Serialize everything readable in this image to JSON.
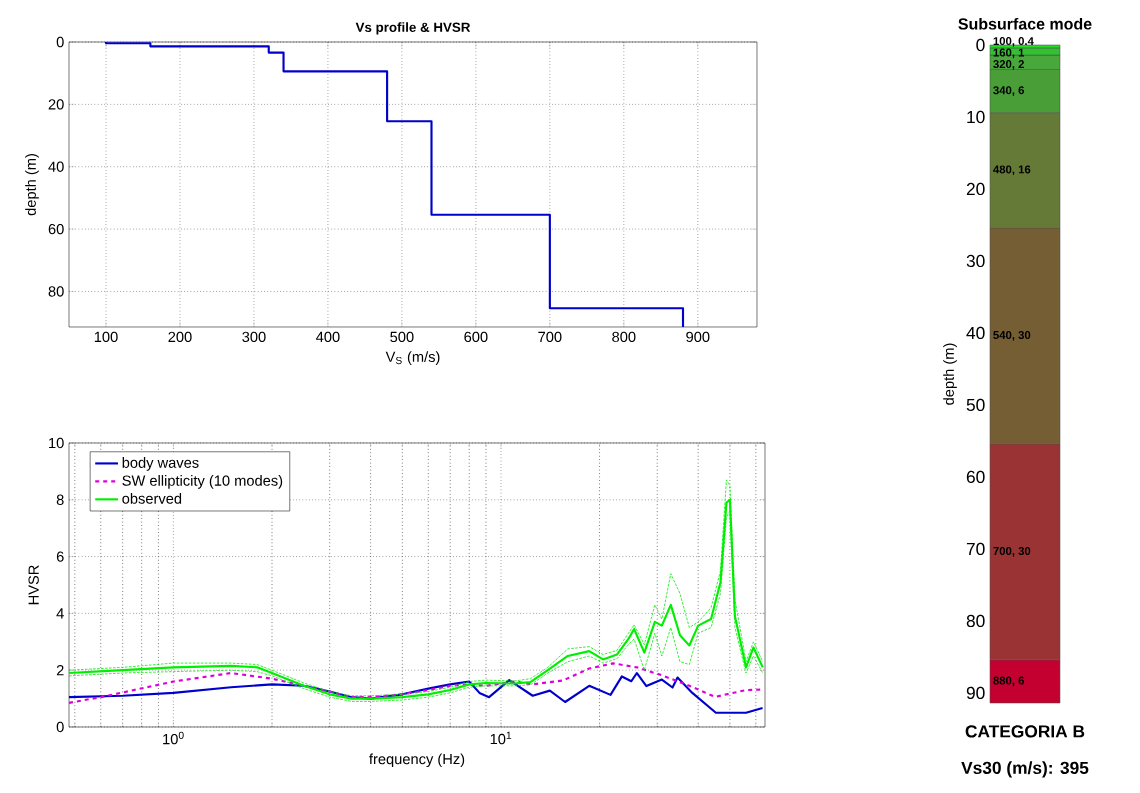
{
  "chart_data": [
    {
      "type": "line",
      "title": "Vs profile & HVSR",
      "xlabel": "V$_{S}$ (m/s)",
      "ylabel": "depth (m)",
      "x": [
        100,
        100,
        160,
        160,
        320,
        320,
        340,
        340,
        480,
        480,
        540,
        540,
        700,
        700,
        880,
        880
      ],
      "values": [
        0,
        0.4,
        0.4,
        1.4,
        1.4,
        3.4,
        3.4,
        9.4,
        9.4,
        25.4,
        25.4,
        55.4,
        55.4,
        85.4,
        85.4,
        91.4
      ],
      "color": "#0000cc",
      "xlim": [
        50,
        980
      ],
      "ylim": [
        91.4,
        0
      ],
      "xticks": [
        100,
        200,
        300,
        400,
        500,
        600,
        700,
        800,
        900
      ],
      "yticks": [
        0,
        20,
        40,
        60,
        80
      ],
      "grid": true
    },
    {
      "type": "line",
      "xlabel": "frequency (Hz)",
      "ylabel": "HVSR",
      "log": "x",
      "grid": true,
      "legend": "top left",
      "xlim": [
        0.48,
        64
      ],
      "ylim": [
        0,
        10
      ],
      "xticks": [
        {
          "value": 1,
          "label": "10$^{0}$"
        },
        {
          "value": 10,
          "label": "10$^{1}$"
        }
      ],
      "yticks": [
        0,
        2,
        4,
        6,
        8,
        10
      ],
      "series": [
        {
          "name": "body waves",
          "color": "#0000cc",
          "line_style": "solid",
          "x": [
            0.48,
            0.7,
            1,
            1.5,
            2,
            2.5,
            3,
            3.5,
            4,
            5,
            6,
            7,
            8,
            8.6,
            9.2,
            10.6,
            12.5,
            14.1,
            15.7,
            18.6,
            21.6,
            23.4,
            25,
            26,
            27.8,
            31,
            33.4,
            34.6,
            38.4,
            45.3,
            56,
            62.9
          ],
          "values": [
            1.05,
            1.1,
            1.2,
            1.4,
            1.5,
            1.45,
            1.25,
            1.05,
            1.0,
            1.15,
            1.35,
            1.5,
            1.6,
            1.2,
            1.05,
            1.65,
            1.1,
            1.28,
            0.88,
            1.45,
            1.13,
            1.78,
            1.61,
            1.9,
            1.44,
            1.67,
            1.39,
            1.74,
            1.2,
            0.5,
            0.5,
            0.67
          ]
        },
        {
          "name": "SW ellipticity (10 modes)",
          "color": "#dd00dd",
          "line_style": "dashed",
          "x": [
            0.48,
            0.6,
            1,
            1.5,
            2,
            3,
            3.5,
            4,
            5,
            6,
            7,
            8,
            9,
            11,
            12.5,
            15.5,
            18.6,
            22,
            26,
            31,
            38.4,
            45,
            56,
            63
          ],
          "values": [
            0.85,
            1.05,
            1.6,
            1.9,
            1.7,
            1.25,
            1.05,
            1.05,
            1.15,
            1.3,
            1.45,
            1.5,
            1.45,
            1.6,
            1.5,
            1.64,
            2.06,
            2.24,
            2.1,
            1.82,
            1.41,
            1.06,
            1.3,
            1.32
          ]
        },
        {
          "name": "observed",
          "color": "#00ee00",
          "line_style": "solid",
          "x": [
            0.48,
            0.7,
            1,
            1.5,
            1.8,
            2,
            2.5,
            3,
            3.5,
            4,
            5,
            6,
            7,
            8,
            9,
            11,
            12.3,
            13.9,
            16,
            18.6,
            20.5,
            22.6,
            24.5,
            25.5,
            27.4,
            29.5,
            31,
            33,
            35.2,
            37.6,
            40,
            43.8,
            46.8,
            48.8,
            50,
            51.8,
            56,
            59,
            63
          ],
          "values": [
            1.9,
            2.0,
            2.1,
            2.15,
            2.1,
            1.9,
            1.45,
            1.15,
            1.0,
            1.0,
            1.05,
            1.15,
            1.3,
            1.5,
            1.55,
            1.53,
            1.58,
            2.0,
            2.5,
            2.67,
            2.38,
            2.55,
            3.1,
            3.45,
            2.62,
            3.7,
            3.57,
            4.3,
            3.23,
            2.87,
            3.57,
            3.8,
            5.1,
            7.9,
            8.0,
            3.9,
            2.1,
            2.8,
            2.1
          ]
        },
        {
          "color": "#00ee00",
          "line_style": "dashed",
          "x": [
            0.48,
            0.7,
            1,
            1.5,
            1.8,
            2,
            2.5,
            3,
            3.5,
            4,
            5,
            6,
            7,
            8,
            9,
            11,
            12.3,
            13.9,
            16,
            18.6,
            20.5,
            22.6,
            24.5,
            25.5,
            27.4,
            29.5,
            31,
            33,
            35.2,
            37.6,
            40,
            43.8,
            46.8,
            48.8,
            50,
            51.8,
            56,
            59,
            63
          ],
          "values": [
            2.0,
            2.1,
            2.25,
            2.25,
            2.2,
            2.0,
            1.55,
            1.25,
            1.1,
            1.1,
            1.15,
            1.25,
            1.4,
            1.6,
            1.65,
            1.62,
            1.7,
            2.1,
            2.75,
            2.83,
            2.55,
            2.7,
            3.3,
            3.6,
            2.9,
            4.3,
            3.8,
            5.4,
            4.7,
            3.5,
            3.7,
            4.2,
            5.5,
            8.7,
            8.5,
            4.5,
            2.3,
            3.0,
            2.3
          ]
        },
        {
          "color": "#00ee00",
          "line_style": "dashed",
          "x": [
            0.48,
            0.7,
            1,
            1.5,
            1.8,
            2,
            2.5,
            3,
            3.5,
            4,
            5,
            6,
            7,
            8,
            9,
            11,
            12.3,
            13.9,
            16,
            18.6,
            20.5,
            22.6,
            24.5,
            25.5,
            27.4,
            29.5,
            31,
            33,
            35.2,
            37.6,
            40,
            43.8,
            46.8,
            48.8,
            50,
            51.8,
            56,
            59,
            63
          ],
          "values": [
            1.8,
            1.9,
            1.95,
            2.0,
            1.95,
            1.8,
            1.35,
            1.05,
            0.9,
            0.9,
            0.95,
            1.05,
            1.2,
            1.4,
            1.45,
            1.45,
            1.48,
            1.9,
            2.3,
            2.5,
            2.25,
            2.4,
            2.9,
            3.1,
            2.0,
            3.3,
            2.5,
            3.5,
            2.3,
            2.2,
            3.3,
            3.5,
            4.7,
            7.4,
            7.6,
            3.5,
            1.9,
            2.5,
            1.9
          ]
        }
      ]
    },
    {
      "type": "bar",
      "stacked": true,
      "title": "Subsurface mode",
      "ylabel": "depth (m)",
      "categories": [
        null
      ],
      "tick_labels": "y",
      "ylim": [
        91.4,
        0
      ],
      "yticks": [
        0,
        10,
        20,
        30,
        40,
        50,
        60,
        70,
        80,
        90
      ],
      "annotations": [
        "CATEGORIA B",
        "Vs30 (m/s): 395"
      ],
      "series": [
        {
          "color": "#22dd22",
          "values": [
            0.4
          ],
          "value_labels": [
            "100, 0.4"
          ]
        },
        {
          "color": "#33c033",
          "values": [
            1
          ],
          "value_labels": [
            "160, 1"
          ]
        },
        {
          "color": "#48a83c",
          "values": [
            2
          ],
          "value_labels": [
            "320, 2"
          ]
        },
        {
          "color": "#4a9e38",
          "values": [
            6
          ],
          "value_labels": [
            "340, 6"
          ]
        },
        {
          "color": "#667a38",
          "values": [
            16
          ],
          "value_labels": [
            "480, 16"
          ]
        },
        {
          "color": "#765e34",
          "values": [
            30
          ],
          "value_labels": [
            "540, 30"
          ]
        },
        {
          "color": "#9a3333",
          "values": [
            30
          ],
          "value_labels": [
            "700, 30"
          ]
        },
        {
          "color": "#c40030",
          "values": [
            6
          ],
          "value_labels": [
            "880, 6"
          ]
        }
      ]
    }
  ]
}
